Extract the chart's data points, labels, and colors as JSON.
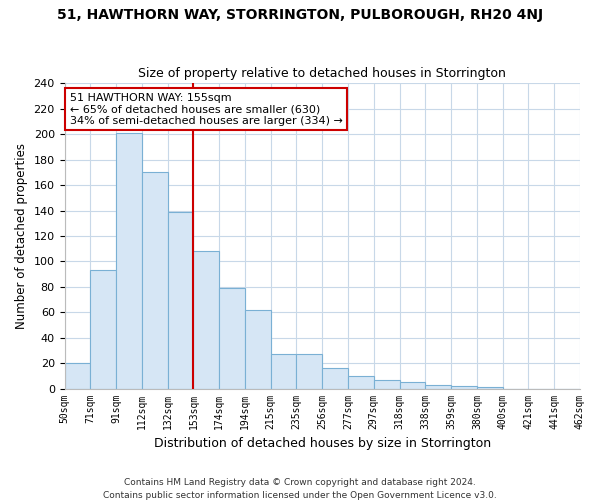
{
  "title": "51, HAWTHORN WAY, STORRINGTON, PULBOROUGH, RH20 4NJ",
  "subtitle": "Size of property relative to detached houses in Storrington",
  "xlabel": "Distribution of detached houses by size in Storrington",
  "ylabel": "Number of detached properties",
  "bar_values": [
    20,
    93,
    201,
    170,
    139,
    108,
    79,
    62,
    27,
    27,
    16,
    10,
    7,
    5,
    3,
    2,
    1,
    0,
    0,
    0
  ],
  "bin_labels": [
    "50sqm",
    "71sqm",
    "91sqm",
    "112sqm",
    "132sqm",
    "153sqm",
    "174sqm",
    "194sqm",
    "215sqm",
    "235sqm",
    "256sqm",
    "277sqm",
    "297sqm",
    "318sqm",
    "338sqm",
    "359sqm",
    "380sqm",
    "400sqm",
    "421sqm",
    "441sqm",
    "462sqm"
  ],
  "bar_color": "#d6e6f5",
  "bar_edge_color": "#7ab0d4",
  "grid_color": "#c8d8e8",
  "background_color": "#ffffff",
  "vline_x": 5,
  "vline_color": "#cc0000",
  "annotation_text": "51 HAWTHORN WAY: 155sqm\n← 65% of detached houses are smaller (630)\n34% of semi-detached houses are larger (334) →",
  "annotation_box_color": "#ffffff",
  "annotation_box_edge_color": "#cc0000",
  "ylim": [
    0,
    240
  ],
  "yticks": [
    0,
    20,
    40,
    60,
    80,
    100,
    120,
    140,
    160,
    180,
    200,
    220,
    240
  ],
  "footer_line1": "Contains HM Land Registry data © Crown copyright and database right 2024.",
  "footer_line2": "Contains public sector information licensed under the Open Government Licence v3.0.",
  "num_bins": 20
}
